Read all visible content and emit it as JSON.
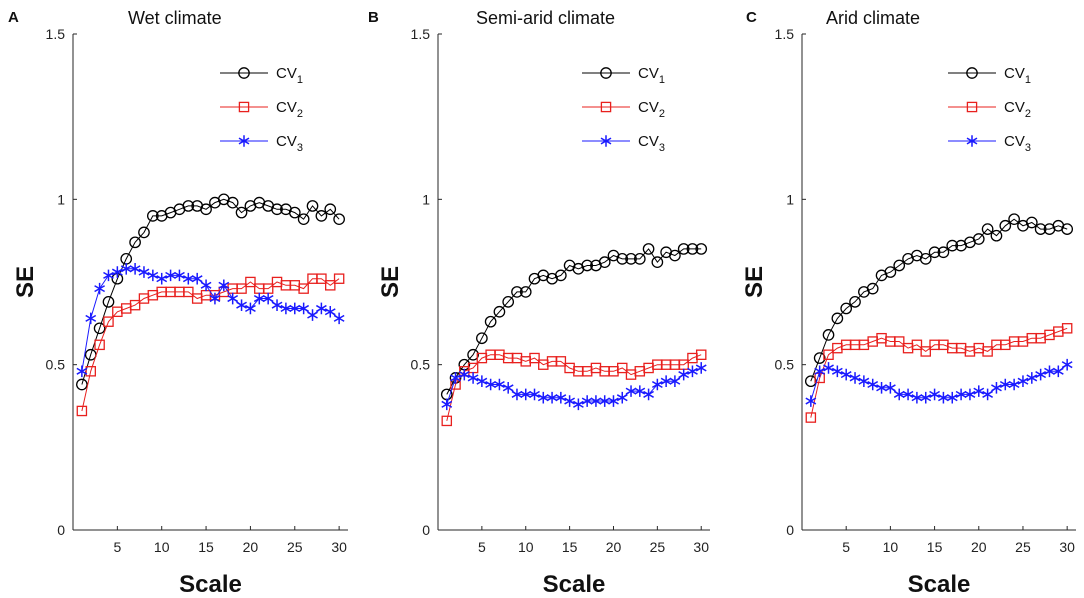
{
  "chart_data": [
    {
      "type": "line",
      "panel_letter": "A",
      "title": "Wet climate",
      "xlabel": "Scale",
      "ylabel": "SE",
      "xlim": [
        0,
        31
      ],
      "ylim": [
        0,
        1.5
      ],
      "xticks": [
        5,
        10,
        15,
        20,
        25,
        30
      ],
      "yticks": [
        0,
        0.5,
        1,
        1.5
      ],
      "ytick_labels": [
        "0",
        "0.5",
        "1",
        "1.5"
      ],
      "legend_position": "top-right",
      "x": [
        1,
        2,
        3,
        4,
        5,
        6,
        7,
        8,
        9,
        10,
        11,
        12,
        13,
        14,
        15,
        16,
        17,
        18,
        19,
        20,
        21,
        22,
        23,
        24,
        25,
        26,
        27,
        28,
        29,
        30
      ],
      "series": [
        {
          "name": "CV",
          "subscript": "1",
          "color": "#000000",
          "marker": "circle",
          "values": [
            0.44,
            0.53,
            0.61,
            0.69,
            0.76,
            0.82,
            0.87,
            0.9,
            0.95,
            0.95,
            0.96,
            0.97,
            0.98,
            0.98,
            0.97,
            0.99,
            1.0,
            0.99,
            0.96,
            0.98,
            0.99,
            0.98,
            0.97,
            0.97,
            0.96,
            0.94,
            0.98,
            0.95,
            0.97,
            0.94
          ]
        },
        {
          "name": "CV",
          "subscript": "2",
          "color": "#e8201e",
          "marker": "square",
          "values": [
            0.36,
            0.48,
            0.56,
            0.63,
            0.66,
            0.67,
            0.68,
            0.7,
            0.71,
            0.72,
            0.72,
            0.72,
            0.72,
            0.7,
            0.71,
            0.71,
            0.72,
            0.73,
            0.73,
            0.75,
            0.73,
            0.73,
            0.75,
            0.74,
            0.74,
            0.73,
            0.76,
            0.76,
            0.74,
            0.76
          ]
        },
        {
          "name": "CV",
          "subscript": "3",
          "color": "#1a1aff",
          "marker": "asterisk",
          "values": [
            0.48,
            0.64,
            0.73,
            0.77,
            0.78,
            0.79,
            0.79,
            0.78,
            0.77,
            0.76,
            0.77,
            0.77,
            0.76,
            0.76,
            0.74,
            0.7,
            0.74,
            0.7,
            0.68,
            0.67,
            0.7,
            0.7,
            0.68,
            0.67,
            0.67,
            0.67,
            0.65,
            0.67,
            0.66,
            0.64
          ]
        }
      ]
    },
    {
      "type": "line",
      "panel_letter": "B",
      "title": "Semi-arid climate",
      "xlabel": "Scale",
      "ylabel": "SE",
      "xlim": [
        0,
        31
      ],
      "ylim": [
        0,
        1.5
      ],
      "xticks": [
        5,
        10,
        15,
        20,
        25,
        30
      ],
      "yticks": [
        0,
        0.5,
        1,
        1.5
      ],
      "ytick_labels": [
        "0",
        "0.5",
        "1",
        "1.5"
      ],
      "legend_position": "top-right",
      "x": [
        1,
        2,
        3,
        4,
        5,
        6,
        7,
        8,
        9,
        10,
        11,
        12,
        13,
        14,
        15,
        16,
        17,
        18,
        19,
        20,
        21,
        22,
        23,
        24,
        25,
        26,
        27,
        28,
        29,
        30
      ],
      "series": [
        {
          "name": "CV",
          "subscript": "1",
          "color": "#000000",
          "marker": "circle",
          "values": [
            0.41,
            0.46,
            0.5,
            0.53,
            0.58,
            0.63,
            0.66,
            0.69,
            0.72,
            0.72,
            0.76,
            0.77,
            0.76,
            0.77,
            0.8,
            0.79,
            0.8,
            0.8,
            0.81,
            0.83,
            0.82,
            0.82,
            0.82,
            0.85,
            0.81,
            0.84,
            0.83,
            0.85,
            0.85,
            0.85
          ]
        },
        {
          "name": "CV",
          "subscript": "2",
          "color": "#e8201e",
          "marker": "square",
          "values": [
            0.33,
            0.44,
            0.48,
            0.49,
            0.52,
            0.53,
            0.53,
            0.52,
            0.52,
            0.51,
            0.52,
            0.5,
            0.51,
            0.51,
            0.49,
            0.48,
            0.48,
            0.49,
            0.48,
            0.48,
            0.49,
            0.47,
            0.48,
            0.49,
            0.5,
            0.5,
            0.5,
            0.5,
            0.52,
            0.53
          ]
        },
        {
          "name": "CV",
          "subscript": "3",
          "color": "#1a1aff",
          "marker": "asterisk",
          "values": [
            0.38,
            0.46,
            0.47,
            0.46,
            0.45,
            0.44,
            0.44,
            0.43,
            0.41,
            0.41,
            0.41,
            0.4,
            0.4,
            0.4,
            0.39,
            0.38,
            0.39,
            0.39,
            0.39,
            0.39,
            0.4,
            0.42,
            0.42,
            0.41,
            0.44,
            0.45,
            0.45,
            0.47,
            0.48,
            0.49
          ]
        }
      ]
    },
    {
      "type": "line",
      "panel_letter": "C",
      "title": "Arid climate",
      "xlabel": "Scale",
      "ylabel": "SE",
      "xlim": [
        0,
        31
      ],
      "ylim": [
        0,
        1.5
      ],
      "xticks": [
        5,
        10,
        15,
        20,
        25,
        30
      ],
      "yticks": [
        0,
        0.5,
        1,
        1.5
      ],
      "ytick_labels": [
        "0",
        "0.5",
        "1",
        "1.5"
      ],
      "legend_position": "top-right",
      "x": [
        1,
        2,
        3,
        4,
        5,
        6,
        7,
        8,
        9,
        10,
        11,
        12,
        13,
        14,
        15,
        16,
        17,
        18,
        19,
        20,
        21,
        22,
        23,
        24,
        25,
        26,
        27,
        28,
        29,
        30
      ],
      "series": [
        {
          "name": "CV",
          "subscript": "1",
          "color": "#000000",
          "marker": "circle",
          "values": [
            0.45,
            0.52,
            0.59,
            0.64,
            0.67,
            0.69,
            0.72,
            0.73,
            0.77,
            0.78,
            0.8,
            0.82,
            0.83,
            0.82,
            0.84,
            0.84,
            0.86,
            0.86,
            0.87,
            0.88,
            0.91,
            0.89,
            0.92,
            0.94,
            0.92,
            0.93,
            0.91,
            0.91,
            0.92,
            0.91
          ]
        },
        {
          "name": "CV",
          "subscript": "2",
          "color": "#e8201e",
          "marker": "square",
          "values": [
            0.34,
            0.46,
            0.53,
            0.55,
            0.56,
            0.56,
            0.56,
            0.57,
            0.58,
            0.57,
            0.57,
            0.55,
            0.56,
            0.54,
            0.56,
            0.56,
            0.55,
            0.55,
            0.54,
            0.55,
            0.54,
            0.56,
            0.56,
            0.57,
            0.57,
            0.58,
            0.58,
            0.59,
            0.6,
            0.61
          ]
        },
        {
          "name": "CV",
          "subscript": "3",
          "color": "#1a1aff",
          "marker": "asterisk",
          "values": [
            0.39,
            0.48,
            0.49,
            0.48,
            0.47,
            0.46,
            0.45,
            0.44,
            0.43,
            0.43,
            0.41,
            0.41,
            0.4,
            0.4,
            0.41,
            0.4,
            0.4,
            0.41,
            0.41,
            0.42,
            0.41,
            0.43,
            0.44,
            0.44,
            0.45,
            0.46,
            0.47,
            0.48,
            0.48,
            0.5
          ]
        }
      ]
    }
  ]
}
